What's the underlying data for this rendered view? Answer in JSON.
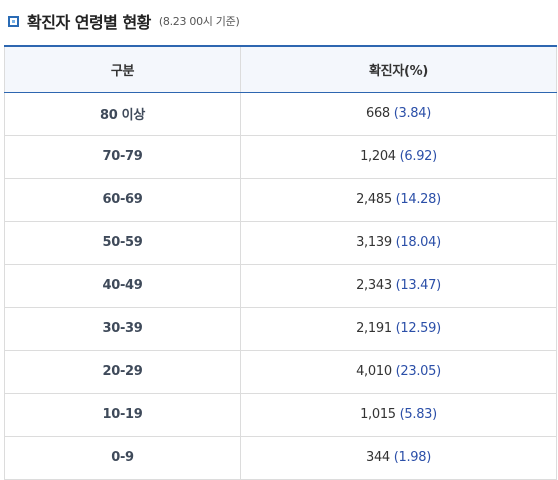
{
  "title": "확진자 연령별 현황",
  "subtitle": "(8.23 00시 기준)",
  "table": {
    "headers": [
      "구분",
      "확진자(%)"
    ],
    "rows": [
      {
        "age": "80 이상",
        "count": "668",
        "pct": "(3.84)"
      },
      {
        "age": "70-79",
        "count": "1,204",
        "pct": "(6.92)"
      },
      {
        "age": "60-69",
        "count": "2,485",
        "pct": "(14.28)"
      },
      {
        "age": "50-59",
        "count": "3,139",
        "pct": "(18.04)"
      },
      {
        "age": "40-49",
        "count": "2,343",
        "pct": "(13.47)"
      },
      {
        "age": "30-39",
        "count": "2,191",
        "pct": "(12.59)"
      },
      {
        "age": "20-29",
        "count": "4,010",
        "pct": "(23.05)"
      },
      {
        "age": "10-19",
        "count": "1,015",
        "pct": "(5.83)"
      },
      {
        "age": "0-9",
        "count": "344",
        "pct": "(1.98)"
      }
    ]
  },
  "colors": {
    "accent": "#2d66b0",
    "percent_text": "#2b4fa8",
    "header_bg": "#f4f7fc"
  }
}
